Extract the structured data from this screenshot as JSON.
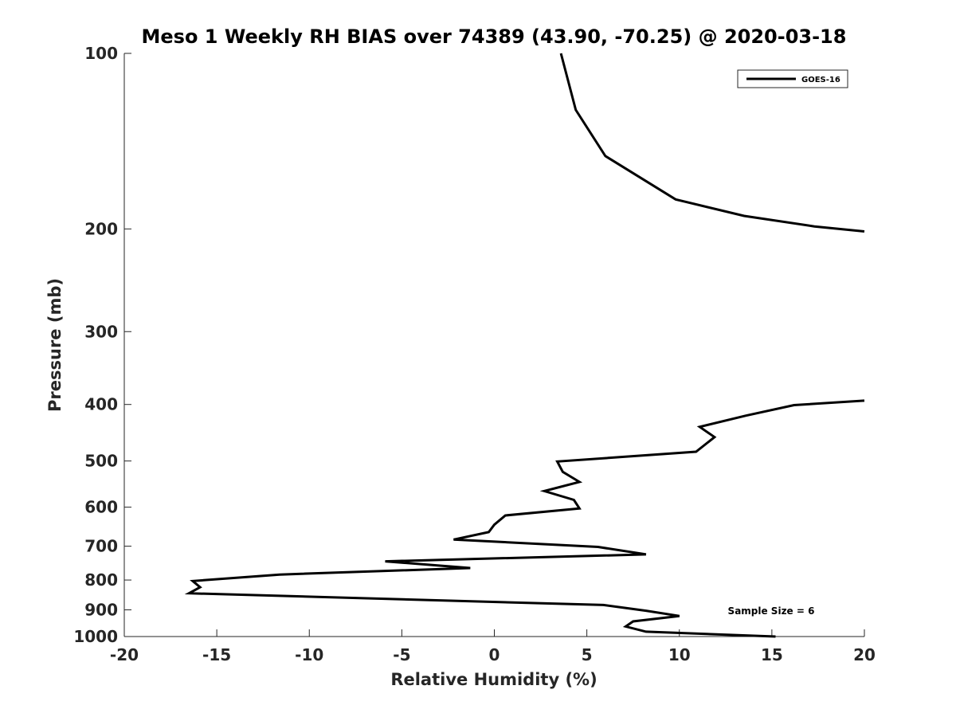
{
  "chart_data": {
    "type": "line",
    "title": "Meso 1 Weekly RH BIAS over 74389 (43.90, -70.25) @ 2020-03-18",
    "xlabel": "Relative Humidity (%)",
    "ylabel": "Pressure (mb)",
    "xlim": [
      -20,
      20
    ],
    "ylim": [
      100,
      1000
    ],
    "y_scale": "log",
    "y_reversed": true,
    "grid": false,
    "x_ticks": [
      "-20",
      "-15",
      "-10",
      "-5",
      "0",
      "5",
      "10",
      "15",
      "20"
    ],
    "y_ticks": [
      "100",
      "200",
      "300",
      "400",
      "500",
      "600",
      "700",
      "800",
      "900",
      "1000"
    ],
    "legend_position": "top-right",
    "annotation": "Sample Size = 6",
    "series": [
      {
        "name": "GOES-16",
        "color": "#000000",
        "segments": [
          [
            [
              3.6,
              100
            ],
            [
              4.4,
              125
            ],
            [
              6.0,
              150
            ],
            [
              9.8,
              178
            ],
            [
              13.5,
              190
            ],
            [
              17.3,
              198
            ],
            [
              20.0,
              202
            ]
          ],
          [
            [
              20.0,
              394
            ],
            [
              16.2,
              401
            ],
            [
              13.6,
              418
            ],
            [
              11.1,
              437
            ],
            [
              11.9,
              455
            ],
            [
              10.9,
              482
            ],
            [
              3.4,
              501
            ],
            [
              3.7,
              522
            ],
            [
              4.6,
              543
            ],
            [
              2.7,
              563
            ],
            [
              4.3,
              583
            ],
            [
              4.6,
              603
            ],
            [
              0.6,
              620
            ],
            [
              0.0,
              643
            ],
            [
              -0.3,
              662
            ],
            [
              -2.2,
              682
            ],
            [
              5.6,
              702
            ],
            [
              8.2,
              723
            ],
            [
              -5.9,
              743
            ],
            [
              -1.3,
              763
            ],
            [
              -11.6,
              783
            ],
            [
              -16.3,
              803
            ],
            [
              -15.9,
              823
            ],
            [
              -16.5,
              843
            ],
            [
              5.9,
              883
            ],
            [
              8.2,
              903
            ],
            [
              10.0,
              922
            ],
            [
              7.5,
              942
            ],
            [
              7.1,
              961
            ],
            [
              8.2,
              981
            ],
            [
              15.2,
              1000
            ]
          ]
        ]
      }
    ]
  }
}
